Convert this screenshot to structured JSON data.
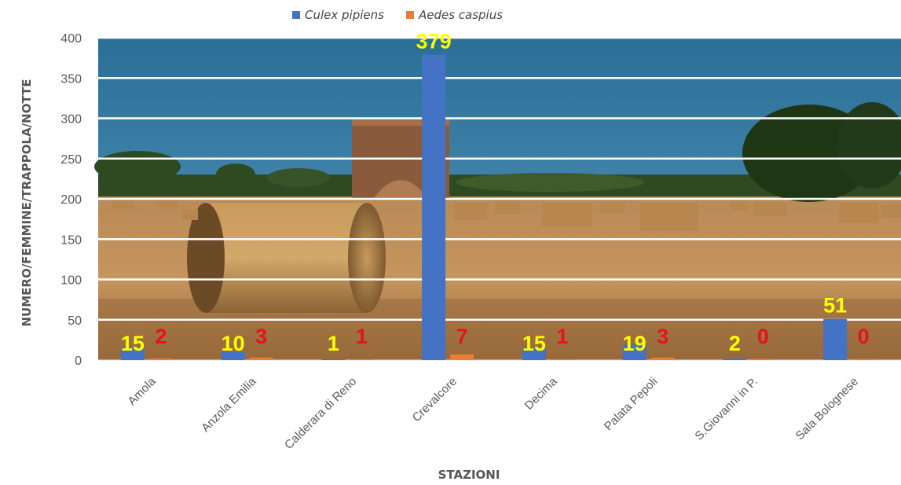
{
  "chart_data": {
    "type": "bar",
    "categories": [
      "Amola",
      "Anzola Emilia",
      "Calderara di Reno",
      "Crevalcore",
      "Decima",
      "Palata Pepoli",
      "S.Giovanni in P.",
      "Sala Bolognese"
    ],
    "series": [
      {
        "name": "Culex pipiens",
        "values": [
          15,
          10,
          1,
          379,
          15,
          19,
          2,
          51
        ],
        "color": "#4472C4",
        "label_color": "#FFFF00"
      },
      {
        "name": "Aedes caspius",
        "values": [
          2,
          3,
          1,
          7,
          1,
          3,
          0,
          0
        ],
        "color": "#ED7D31",
        "label_color": "#E8121B"
      }
    ],
    "yticks": [
      0,
      50,
      100,
      150,
      200,
      250,
      300,
      350,
      400
    ],
    "ylim": [
      0,
      400
    ],
    "xlabel": "STAZIONI",
    "ylabel": "NUMERO/FEMMINE/TRAPPOLA/NOTTE",
    "legend_position": "top",
    "grid": true,
    "background": "photo of a harvested wheat field with round hay bales under a blue sky"
  }
}
